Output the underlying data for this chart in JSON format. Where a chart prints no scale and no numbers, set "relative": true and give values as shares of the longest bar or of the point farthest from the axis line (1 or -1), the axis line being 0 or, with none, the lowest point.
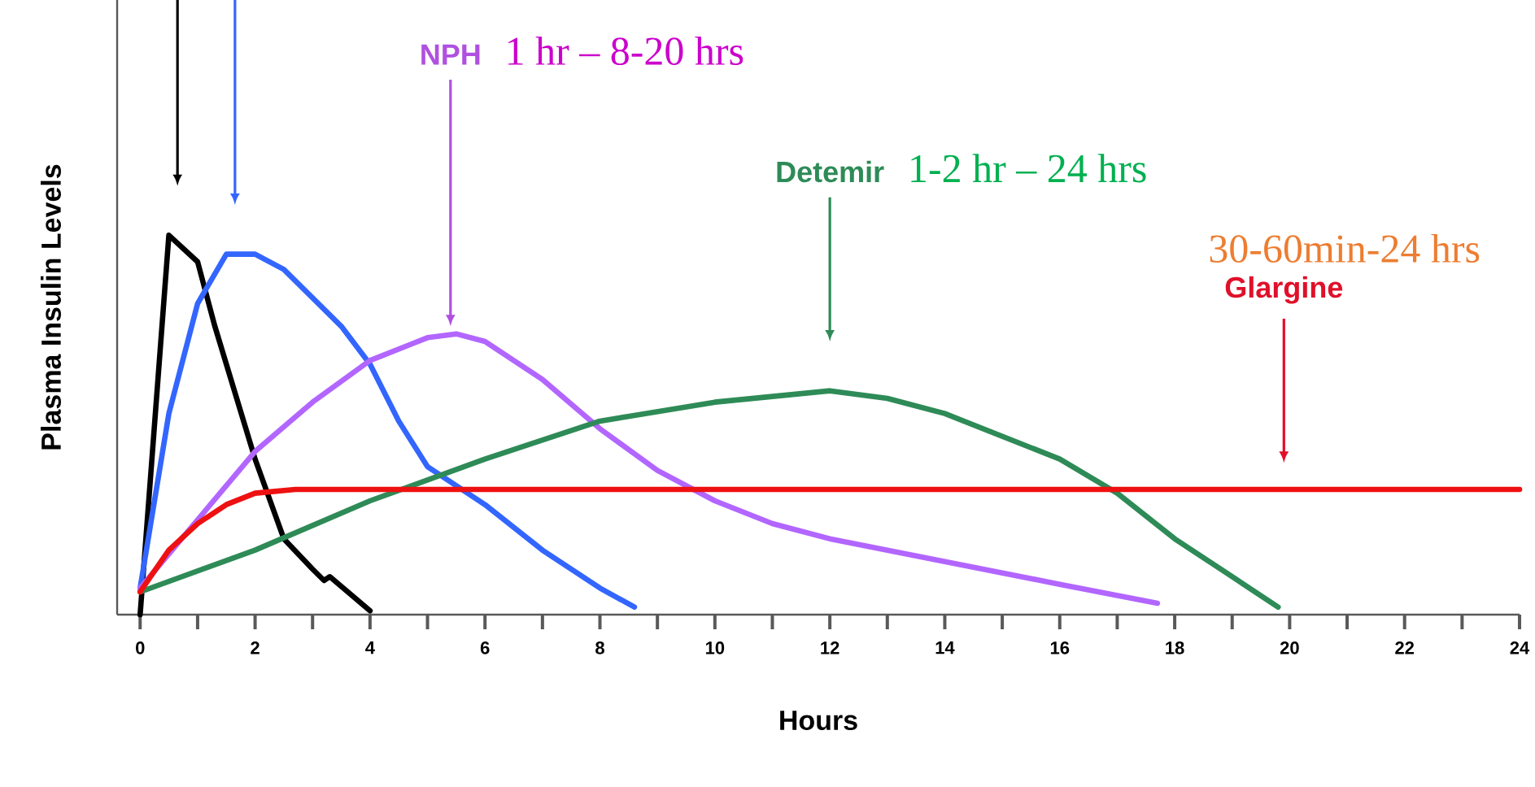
{
  "chart_data": {
    "type": "line",
    "relative": true,
    "xlabel": "Hours",
    "ylabel": "Plasma Insulin Levels",
    "xlim": [
      -0.4,
      24
    ],
    "xticks": [
      0,
      2,
      4,
      6,
      8,
      10,
      12,
      14,
      16,
      18,
      20,
      22,
      24
    ],
    "grid": false,
    "marker": "none",
    "line_style": "solid",
    "series": [
      {
        "color": "#000000",
        "x": [
          0,
          0.5,
          1.0,
          1.3,
          2.0,
          2.5,
          3.0,
          3.2,
          3.3,
          4.0
        ],
        "values": [
          0,
          1.0,
          0.93,
          0.76,
          0.41,
          0.2,
          0.12,
          0.09,
          0.1,
          0.01
        ]
      },
      {
        "color": "#3366ff",
        "x": [
          0,
          0.5,
          1.0,
          1.5,
          2.0,
          2.5,
          3.5,
          4.0,
          4.5,
          5.0,
          6.0,
          7.0,
          8.0,
          8.6
        ],
        "values": [
          0.07,
          0.53,
          0.82,
          0.95,
          0.95,
          0.91,
          0.76,
          0.66,
          0.51,
          0.39,
          0.29,
          0.17,
          0.07,
          0.02
        ]
      },
      {
        "color": "#b266ff",
        "x": [
          0,
          1,
          2,
          3,
          4,
          5,
          5.5,
          6,
          7,
          8,
          9,
          10,
          11,
          12,
          14,
          16,
          17.7
        ],
        "values": [
          0.07,
          0.25,
          0.43,
          0.56,
          0.67,
          0.73,
          0.74,
          0.72,
          0.62,
          0.49,
          0.38,
          0.3,
          0.24,
          0.2,
          0.14,
          0.08,
          0.03
        ]
      },
      {
        "color": "#2e8b57",
        "x": [
          0,
          2,
          4,
          6,
          8,
          10,
          12,
          13,
          14,
          16,
          17,
          18,
          19,
          19.8
        ],
        "values": [
          0.06,
          0.17,
          0.3,
          0.41,
          0.51,
          0.56,
          0.59,
          0.57,
          0.53,
          0.41,
          0.32,
          0.2,
          0.1,
          0.02
        ]
      },
      {
        "color": "#ee1111",
        "x": [
          0,
          0.5,
          1,
          1.5,
          2,
          2.7,
          24
        ],
        "values": [
          0.06,
          0.17,
          0.24,
          0.29,
          0.32,
          0.33,
          0.33
        ]
      }
    ],
    "annotations": [
      "NPH",
      "Detemir",
      "Glargine",
      "1 hr – 8-20 hrs",
      "1-2 hr – 24 hrs",
      "30-60min-24 hrs"
    ]
  }
}
